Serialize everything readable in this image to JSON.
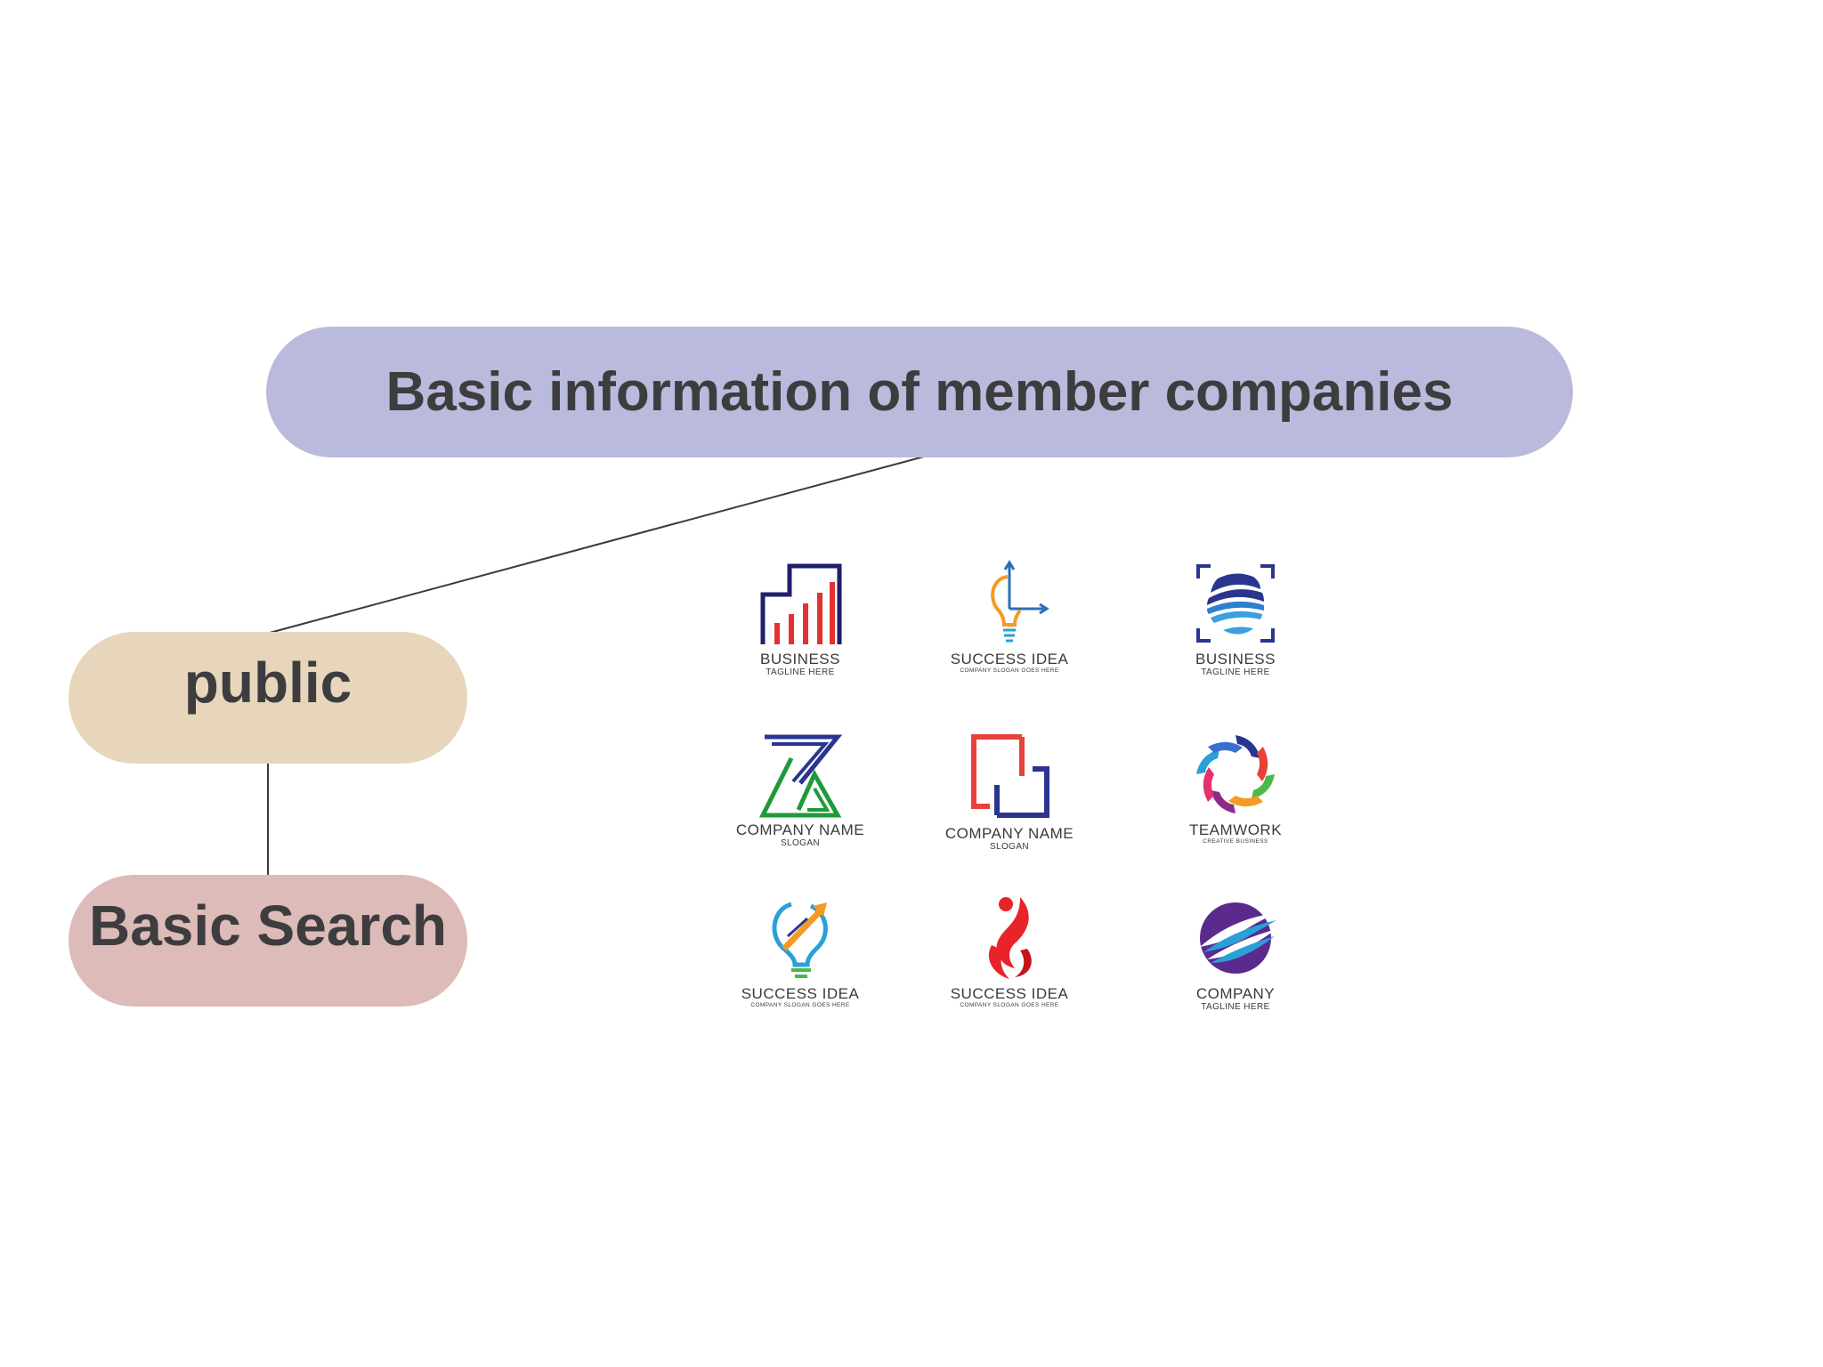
{
  "diagram": {
    "root": {
      "label": "Basic information of member companies",
      "color": "#babadc"
    },
    "children": [
      {
        "label": "public",
        "color": "#e7d6bb"
      }
    ],
    "grandchildren": [
      {
        "label": "Basic Search",
        "color": "#ddbbb8"
      }
    ]
  },
  "logos": [
    {
      "name": "BUSINESS",
      "sub": "TAGLINE HERE",
      "icon": "bar-chart-building-icon"
    },
    {
      "name": "SUCCESS IDEA",
      "sub": "COMPANY SLOGAN GOES HERE",
      "icon": "lightbulb-graph-icon"
    },
    {
      "name": "BUSINESS",
      "sub": "TAGLINE HERE",
      "icon": "globe-frame-icon"
    },
    {
      "name": "COMPANY NAME",
      "sub": "SLOGAN",
      "icon": "letter-z-triangle-icon"
    },
    {
      "name": "COMPANY NAME",
      "sub": "SLOGAN",
      "icon": "interlocking-squares-icon"
    },
    {
      "name": "TEAMWORK",
      "sub": "CREATIVE BUSINESS",
      "icon": "swirl-arrows-icon"
    },
    {
      "name": "SUCCESS IDEA",
      "sub": "COMPANY SLOGAN GOES HERE",
      "icon": "lightbulb-arrow-icon"
    },
    {
      "name": "SUCCESS IDEA",
      "sub": "COMPANY SLOGAN GOES HERE",
      "icon": "flame-person-icon"
    },
    {
      "name": "COMPANY",
      "sub": "TAGLINE HERE",
      "icon": "planet-swoosh-icon"
    }
  ]
}
